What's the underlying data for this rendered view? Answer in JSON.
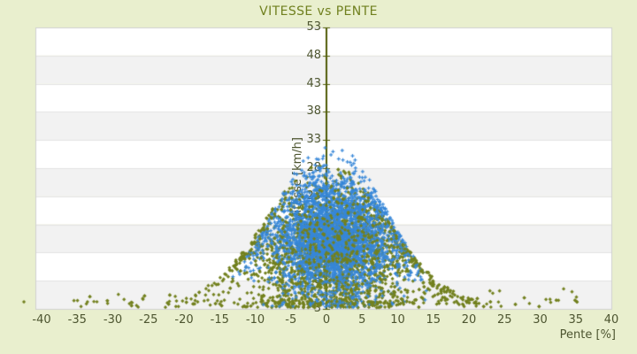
{
  "title": "VITESSE vs PENTE",
  "colors": {
    "page_background": "#e9efce",
    "band_white": "#ffffff",
    "band_gray": "#f2f2f2",
    "band_line": "#e3e3e3",
    "plot_border": "#d0d0d0",
    "axis_line": "#505c08",
    "tick_text": "#4d5530",
    "title_text": "#70801f",
    "series_blue": "#3787d8",
    "series_olive": "#72801e"
  },
  "chart_data": {
    "type": "scatter",
    "title": "VITESSE vs PENTE",
    "xlabel": "Pente [%]",
    "ylabel": "Vitesse [km/h]",
    "xlim": [
      -40.9,
      40
    ],
    "ylim": [
      3,
      53
    ],
    "x_ticks": [
      -40,
      -35,
      -30,
      -25,
      -20,
      -15,
      -10,
      -5,
      0,
      5,
      10,
      15,
      20,
      25,
      30,
      35,
      40
    ],
    "y_ticks": [
      53,
      48,
      43,
      38,
      33,
      28,
      23,
      18,
      13,
      8,
      3
    ],
    "grid_bands": {
      "colors": [
        "#ffffff",
        "#f2f2f2"
      ],
      "line_color": "#e3e3e3",
      "border_color": "#d0d0d0",
      "legend": "horizontal bands every 5 km/h, alternating white/gray"
    },
    "zero_axis": {
      "x": 0,
      "color": "#505c08",
      "tick_color": "#505c08"
    },
    "legend_shown": false,
    "seed": 20240917,
    "series": [
      {
        "name": "olive",
        "marker": "diamond",
        "color": "#72801e",
        "count": 2400,
        "core_frac": 0.68,
        "x_core_mean": 1.2,
        "x_core_sd": 5.2,
        "x_wide_sd": 9.5,
        "y_mean": 13,
        "y_sd": 6,
        "envelope": {
          "base": 3.5,
          "amp": 26,
          "center": 0,
          "width": 140
        },
        "tail": {
          "count": 130,
          "y_base": 3.8,
          "y_sd": 1.1,
          "x_range": [
            -42.5,
            36
          ]
        },
        "observed_extent": {
          "x": [
            -42,
            36
          ],
          "y": [
            3.2,
            29
          ]
        }
      },
      {
        "name": "blue",
        "marker": "cross",
        "color": "#3787d8",
        "count": 3000,
        "x_mean": 0.8,
        "x_sd": 4.4,
        "x_clip": [
          -14.8,
          14.8
        ],
        "y_mean": 15.8,
        "y_sd": 5.4,
        "envelope": {
          "base": 4,
          "amp": 29,
          "center": 0.5,
          "width": 112
        },
        "observed_extent": {
          "x": [
            -14,
            14
          ],
          "y": [
            3.5,
            33.5
          ]
        }
      }
    ]
  }
}
